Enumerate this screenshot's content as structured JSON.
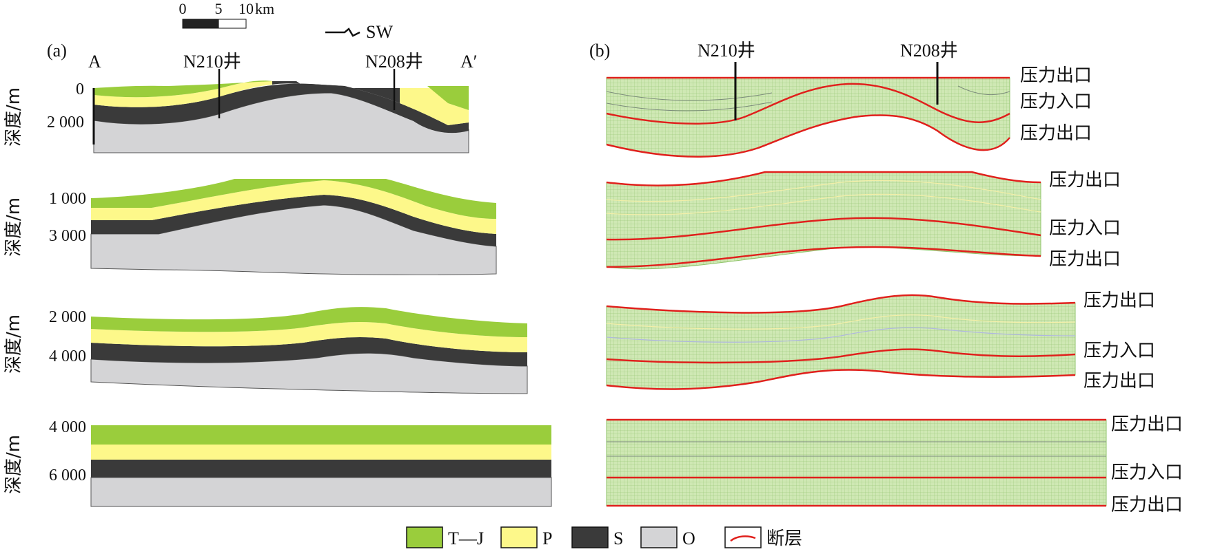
{
  "scale_bar": {
    "ticks": [
      "0",
      "5",
      "10"
    ],
    "unit": "km"
  },
  "direction": "SW",
  "panel_a": {
    "label": "(a)",
    "left_end": "A",
    "right_end": "A′",
    "wells": [
      "N210井",
      "N208井"
    ],
    "axis_title": "深度/m",
    "section_ticks": [
      [
        "0",
        "2 000"
      ],
      [
        "1 000",
        "3 000"
      ],
      [
        "2 000",
        "4 000"
      ],
      [
        "4 000",
        "6 000"
      ]
    ]
  },
  "panel_b": {
    "label": "(b)",
    "wells": [
      "N210井",
      "N208井"
    ],
    "boundary_labels": {
      "outlet": "压力出口",
      "inlet": "压力入口"
    }
  },
  "legend": [
    {
      "label": "T—J",
      "color": "#9acd3c"
    },
    {
      "label": "P",
      "color": "#fdf88a"
    },
    {
      "label": "S",
      "color": "#3a3a3a"
    },
    {
      "label": "O",
      "color": "#d4d4d6"
    },
    {
      "label": "断层",
      "color": "#e0201c"
    }
  ],
  "colors": {
    "mesh_fill": "#cfe8b4",
    "fault": "#e0201c"
  }
}
